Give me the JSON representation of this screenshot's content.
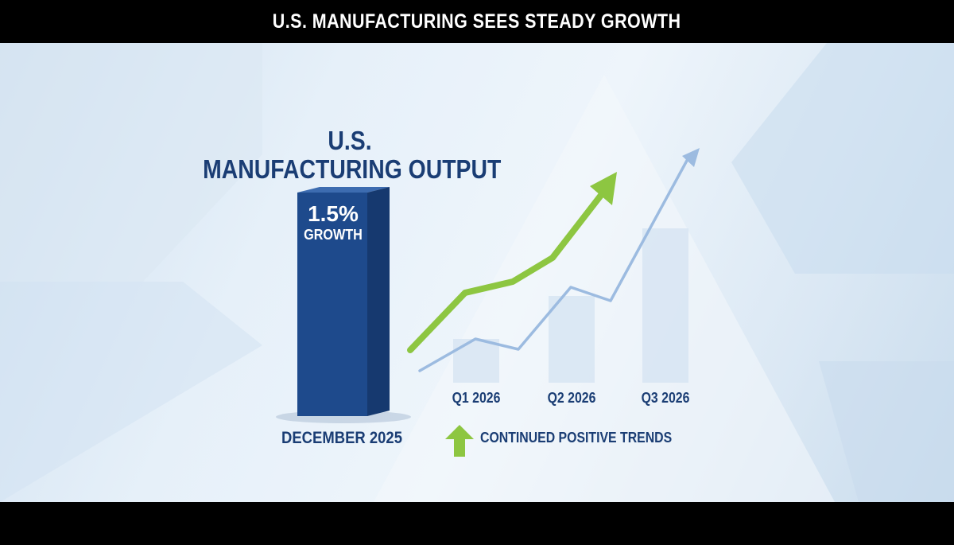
{
  "header": {
    "title": "U.S. MANUFACTURING SEES STEADY GROWTH"
  },
  "colors": {
    "primary_bar": "#1e4a8c",
    "accent_line": "#8dc641",
    "secondary_line": "#9cbbe0",
    "text": "#1a3d74"
  },
  "chart_data": {
    "type": "bar",
    "title": "U.S. MANUFACTURING OUTPUT",
    "title_lines": [
      "U.S.",
      "MANUFACTURING OUTPUT"
    ],
    "bar": {
      "category": "DECEMBER 2025",
      "value_label": "1.5%",
      "value_sublabel": "GROWTH",
      "value": 1.5,
      "unit": "%"
    },
    "projection": {
      "categories": [
        "Q1 2026",
        "Q2 2026",
        "Q3 2026"
      ],
      "legend": "CONTINUED POSITIVE TRENDS",
      "legend_icon": "up-arrow-icon",
      "trend": "rising"
    },
    "grid": false,
    "legend_position": "bottom"
  }
}
